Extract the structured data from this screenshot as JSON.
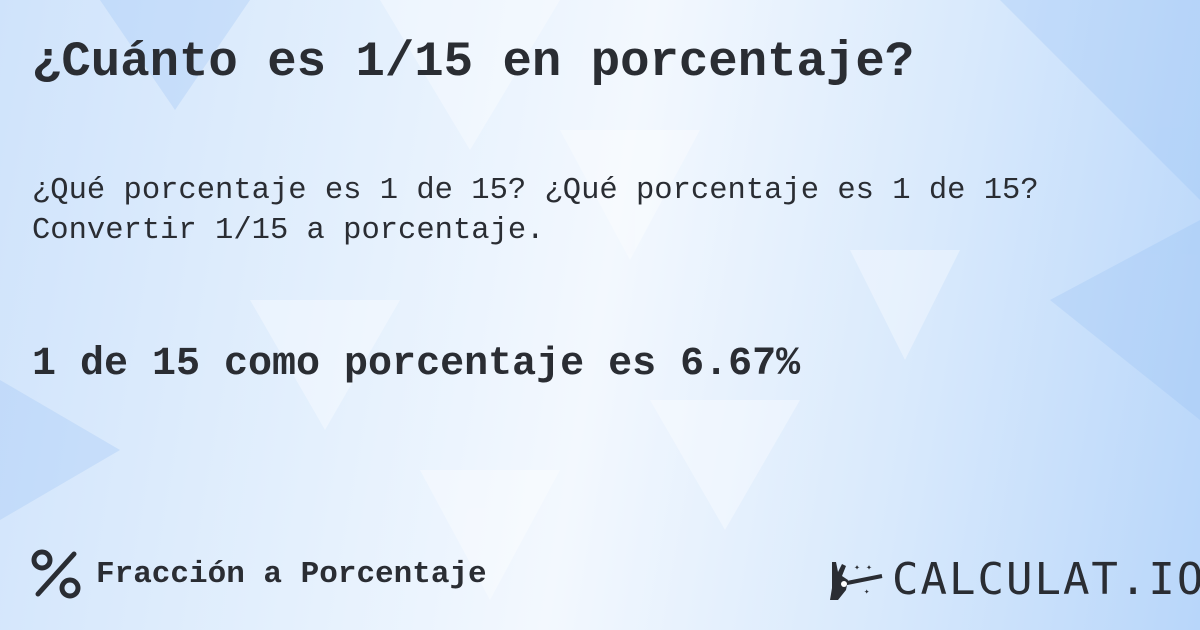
{
  "title": "¿Cuánto es 1/15 en porcentaje?",
  "questions": [
    "¿Qué porcentaje es 1 de 15? ¿Qué porcentaje es 1 de 15?",
    "Convertir 1/15 a porcentaje."
  ],
  "result": "1 de 15 como porcentaje es 6.67%",
  "category": {
    "icon": "percent-icon",
    "label": "Fracción a Porcentaje"
  },
  "logo": {
    "text": "CALCULAT.IO",
    "icon": "magic-hand-icon"
  },
  "colors": {
    "text": "#2a2d33",
    "background": "#d8e9fc"
  }
}
